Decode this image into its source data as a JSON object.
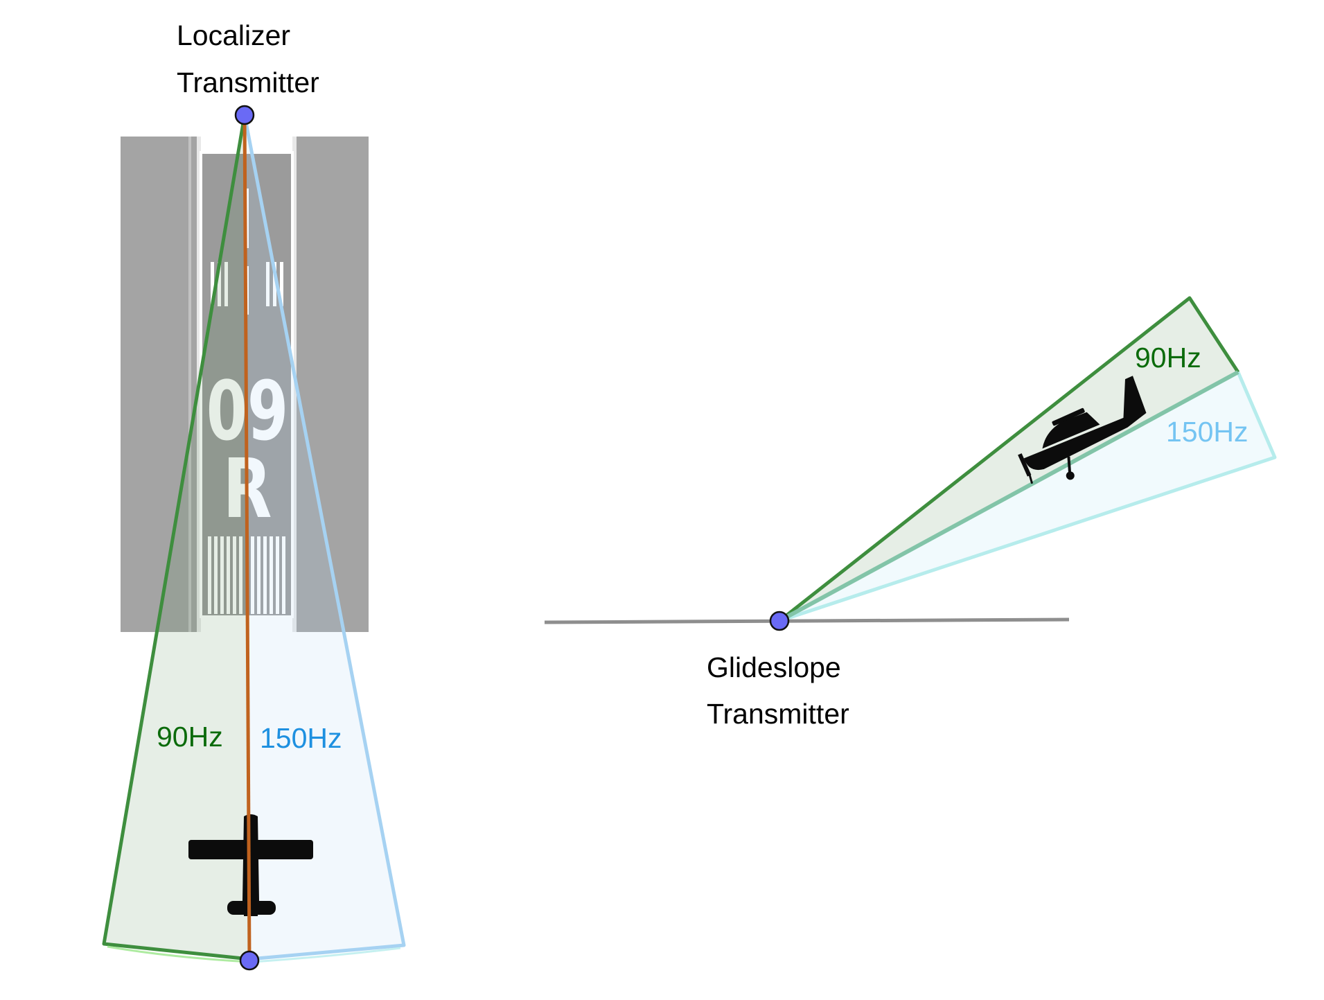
{
  "localizer": {
    "title_line1": "Localizer",
    "title_line2": "Transmitter",
    "label_90": "90Hz",
    "label_150": "150Hz"
  },
  "runway": {
    "number": "09",
    "letter": "R"
  },
  "glideslope": {
    "title_line1": "Glideslope",
    "title_line2": "Transmitter",
    "label_90": "90Hz",
    "label_150": "150Hz"
  },
  "colors": {
    "green_90hz": "#3e8e3e",
    "green_text": "#0b6b0b",
    "blue_150hz": "#a6d2f2",
    "blue_text": "#1e90e0",
    "cyan_150hz": "#b6ecec",
    "centerline": "#c0621e",
    "transmitter_dot": "#6a6af5",
    "runway_gray": "#a4a4a4"
  }
}
